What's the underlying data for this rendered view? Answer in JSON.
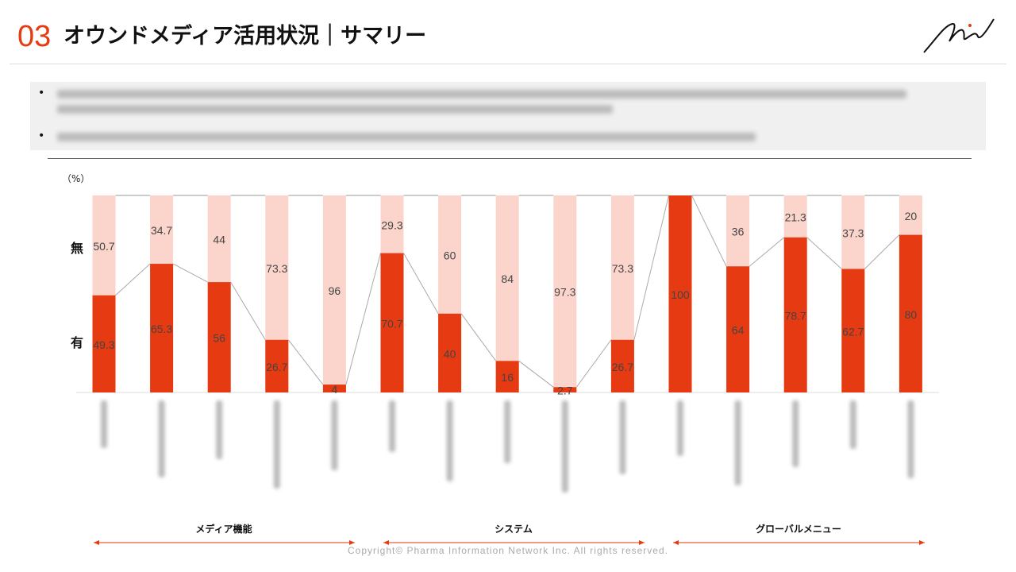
{
  "header": {
    "section_number": "03",
    "title": "オウンドメディア活用状況｜サマリー"
  },
  "chart_data": {
    "type": "bar",
    "stacked": true,
    "unit_label": "（%）",
    "ylim": [
      0,
      100
    ],
    "series": [
      {
        "name": "有",
        "color": "#e63a12",
        "values": [
          49.3,
          65.3,
          56,
          26.7,
          4,
          70.7,
          40,
          16,
          2.7,
          26.7,
          100,
          64,
          78.7,
          62.7,
          80
        ]
      },
      {
        "name": "無",
        "color": "#fbd5cc",
        "values": [
          50.7,
          34.7,
          44,
          73.3,
          96,
          29.3,
          60,
          84,
          97.3,
          73.3,
          0,
          36,
          21.3,
          37.3,
          20
        ]
      }
    ],
    "groups": [
      {
        "label": "メディア機能",
        "from": 0,
        "to": 4
      },
      {
        "label": "システム",
        "from": 5,
        "to": 9
      },
      {
        "label": "グローバルメニュー",
        "from": 10,
        "to": 14
      }
    ]
  },
  "footer": {
    "copyright": "Copyright© Pharma Information Network Inc. All rights reserved."
  }
}
